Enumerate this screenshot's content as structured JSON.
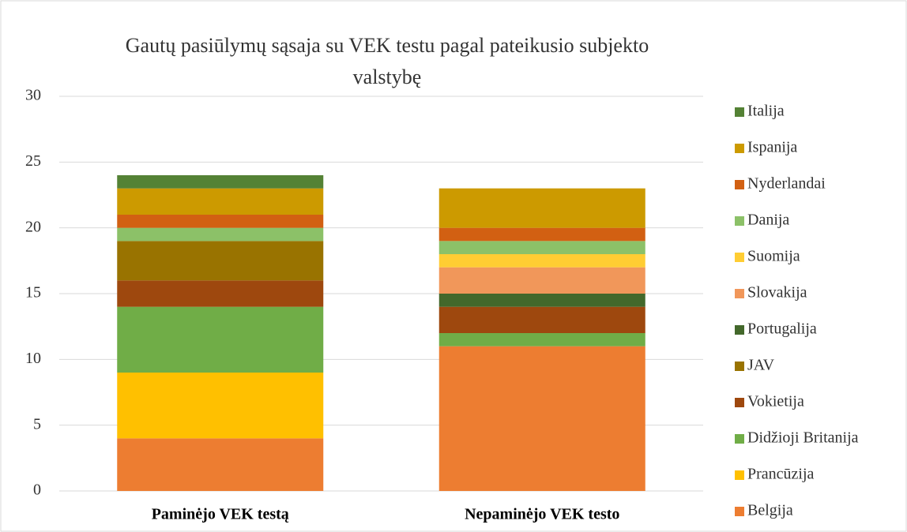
{
  "chart_data": {
    "type": "stacked_bar",
    "title": "Gautų pasiūlymų sąsaja su VEK testu pagal pateikusio subjekto valstybę",
    "categories": [
      "Paminėjo VEK testą",
      "Nepaminėjo VEK testo"
    ],
    "series": [
      {
        "name": "Belgija",
        "color": "#ED7D31",
        "values": [
          4,
          11
        ]
      },
      {
        "name": "Prancūzija",
        "color": "#FFC000",
        "values": [
          5,
          0
        ]
      },
      {
        "name": "Didžioji Britanija",
        "color": "#70AD47",
        "values": [
          5,
          1
        ]
      },
      {
        "name": "Vokietija",
        "color": "#9E480E",
        "values": [
          2,
          2
        ]
      },
      {
        "name": "JAV",
        "color": "#997300",
        "values": [
          3,
          0
        ]
      },
      {
        "name": "Portugalija",
        "color": "#43682B",
        "values": [
          0,
          1
        ]
      },
      {
        "name": "Slovakija",
        "color": "#F1975A",
        "values": [
          0,
          2
        ]
      },
      {
        "name": "Suomija",
        "color": "#FFCD33",
        "values": [
          0,
          1
        ]
      },
      {
        "name": "Danija",
        "color": "#8CC168",
        "values": [
          1,
          1
        ]
      },
      {
        "name": "Nyderlandai",
        "color": "#D26012",
        "values": [
          1,
          1
        ]
      },
      {
        "name": "Ispanija",
        "color": "#CC9A00",
        "values": [
          2,
          3
        ]
      },
      {
        "name": "Italija",
        "color": "#548235",
        "values": [
          1,
          0
        ]
      }
    ],
    "ylim": [
      0,
      30
    ],
    "yticks": [
      0,
      5,
      10,
      15,
      20,
      25,
      30
    ],
    "grid": true,
    "legend": "right"
  }
}
